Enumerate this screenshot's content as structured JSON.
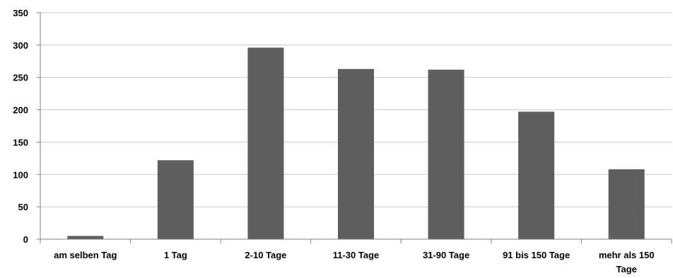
{
  "chart_data": {
    "type": "bar",
    "title": "",
    "xlabel": "",
    "ylabel": "",
    "categories": [
      "am selben Tag",
      "1 Tag",
      "2-10 Tage",
      "11-30 Tage",
      "31-90 Tage",
      "91 bis 150 Tage",
      [
        "mehr als 150",
        "Tage"
      ]
    ],
    "values": [
      5,
      122,
      296,
      263,
      262,
      197,
      108
    ],
    "ylim": [
      0,
      350
    ],
    "yticks": [
      "0",
      "50",
      "100",
      "150",
      "200",
      "250",
      "300",
      "350"
    ],
    "grid": true,
    "legend": "none",
    "colors": {
      "bar": "#5e5e5e",
      "grid": "#c8c8c8",
      "axis": "#808080"
    }
  }
}
